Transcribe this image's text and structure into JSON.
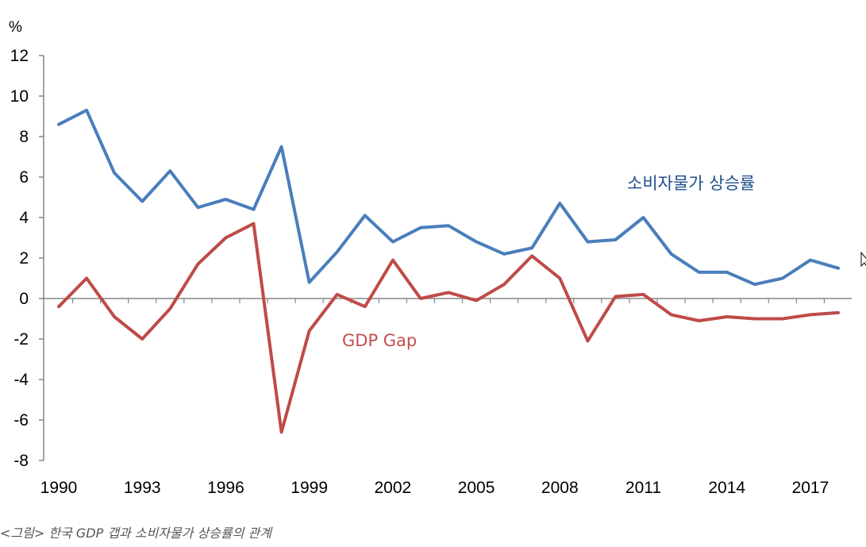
{
  "caption": "<그림> 한국 GDP 갭과 소비자물가 상승률의 관계",
  "chart_data": {
    "type": "line",
    "title": "",
    "ylabel": "%",
    "xlabel": "",
    "ylim": [
      -8,
      12
    ],
    "yticks": [
      12,
      10,
      8,
      6,
      4,
      2,
      0,
      -2,
      -4,
      -6,
      -8
    ],
    "xticks": [
      1990,
      1993,
      1996,
      1999,
      2002,
      2005,
      2008,
      2011,
      2014,
      2017
    ],
    "x": [
      1990,
      1991,
      1992,
      1993,
      1994,
      1995,
      1996,
      1997,
      1998,
      1999,
      2000,
      2001,
      2002,
      2003,
      2004,
      2005,
      2006,
      2007,
      2008,
      2009,
      2010,
      2011,
      2012,
      2013,
      2014,
      2015,
      2016,
      2017,
      2018
    ],
    "series": [
      {
        "name": "소비자물가 상승률",
        "color": "#4a7ebb",
        "values": [
          8.6,
          9.3,
          6.2,
          4.8,
          6.3,
          4.5,
          4.9,
          4.4,
          7.5,
          0.8,
          2.3,
          4.1,
          2.8,
          3.5,
          3.6,
          2.8,
          2.2,
          2.5,
          4.7,
          2.8,
          2.9,
          4.0,
          2.2,
          1.3,
          1.3,
          0.7,
          1.0,
          1.9,
          1.5
        ]
      },
      {
        "name": "GDP Gap",
        "color": "#be4b48",
        "values": [
          -0.4,
          1.0,
          -0.9,
          -2.0,
          -0.5,
          1.7,
          3.0,
          3.7,
          -6.6,
          -1.6,
          0.2,
          -0.4,
          1.9,
          0.0,
          0.3,
          -0.1,
          0.7,
          2.1,
          1.0,
          -2.1,
          0.1,
          0.2,
          -0.8,
          -1.1,
          -0.9,
          -1.0,
          -1.0,
          -0.8,
          -0.7
        ]
      }
    ]
  }
}
